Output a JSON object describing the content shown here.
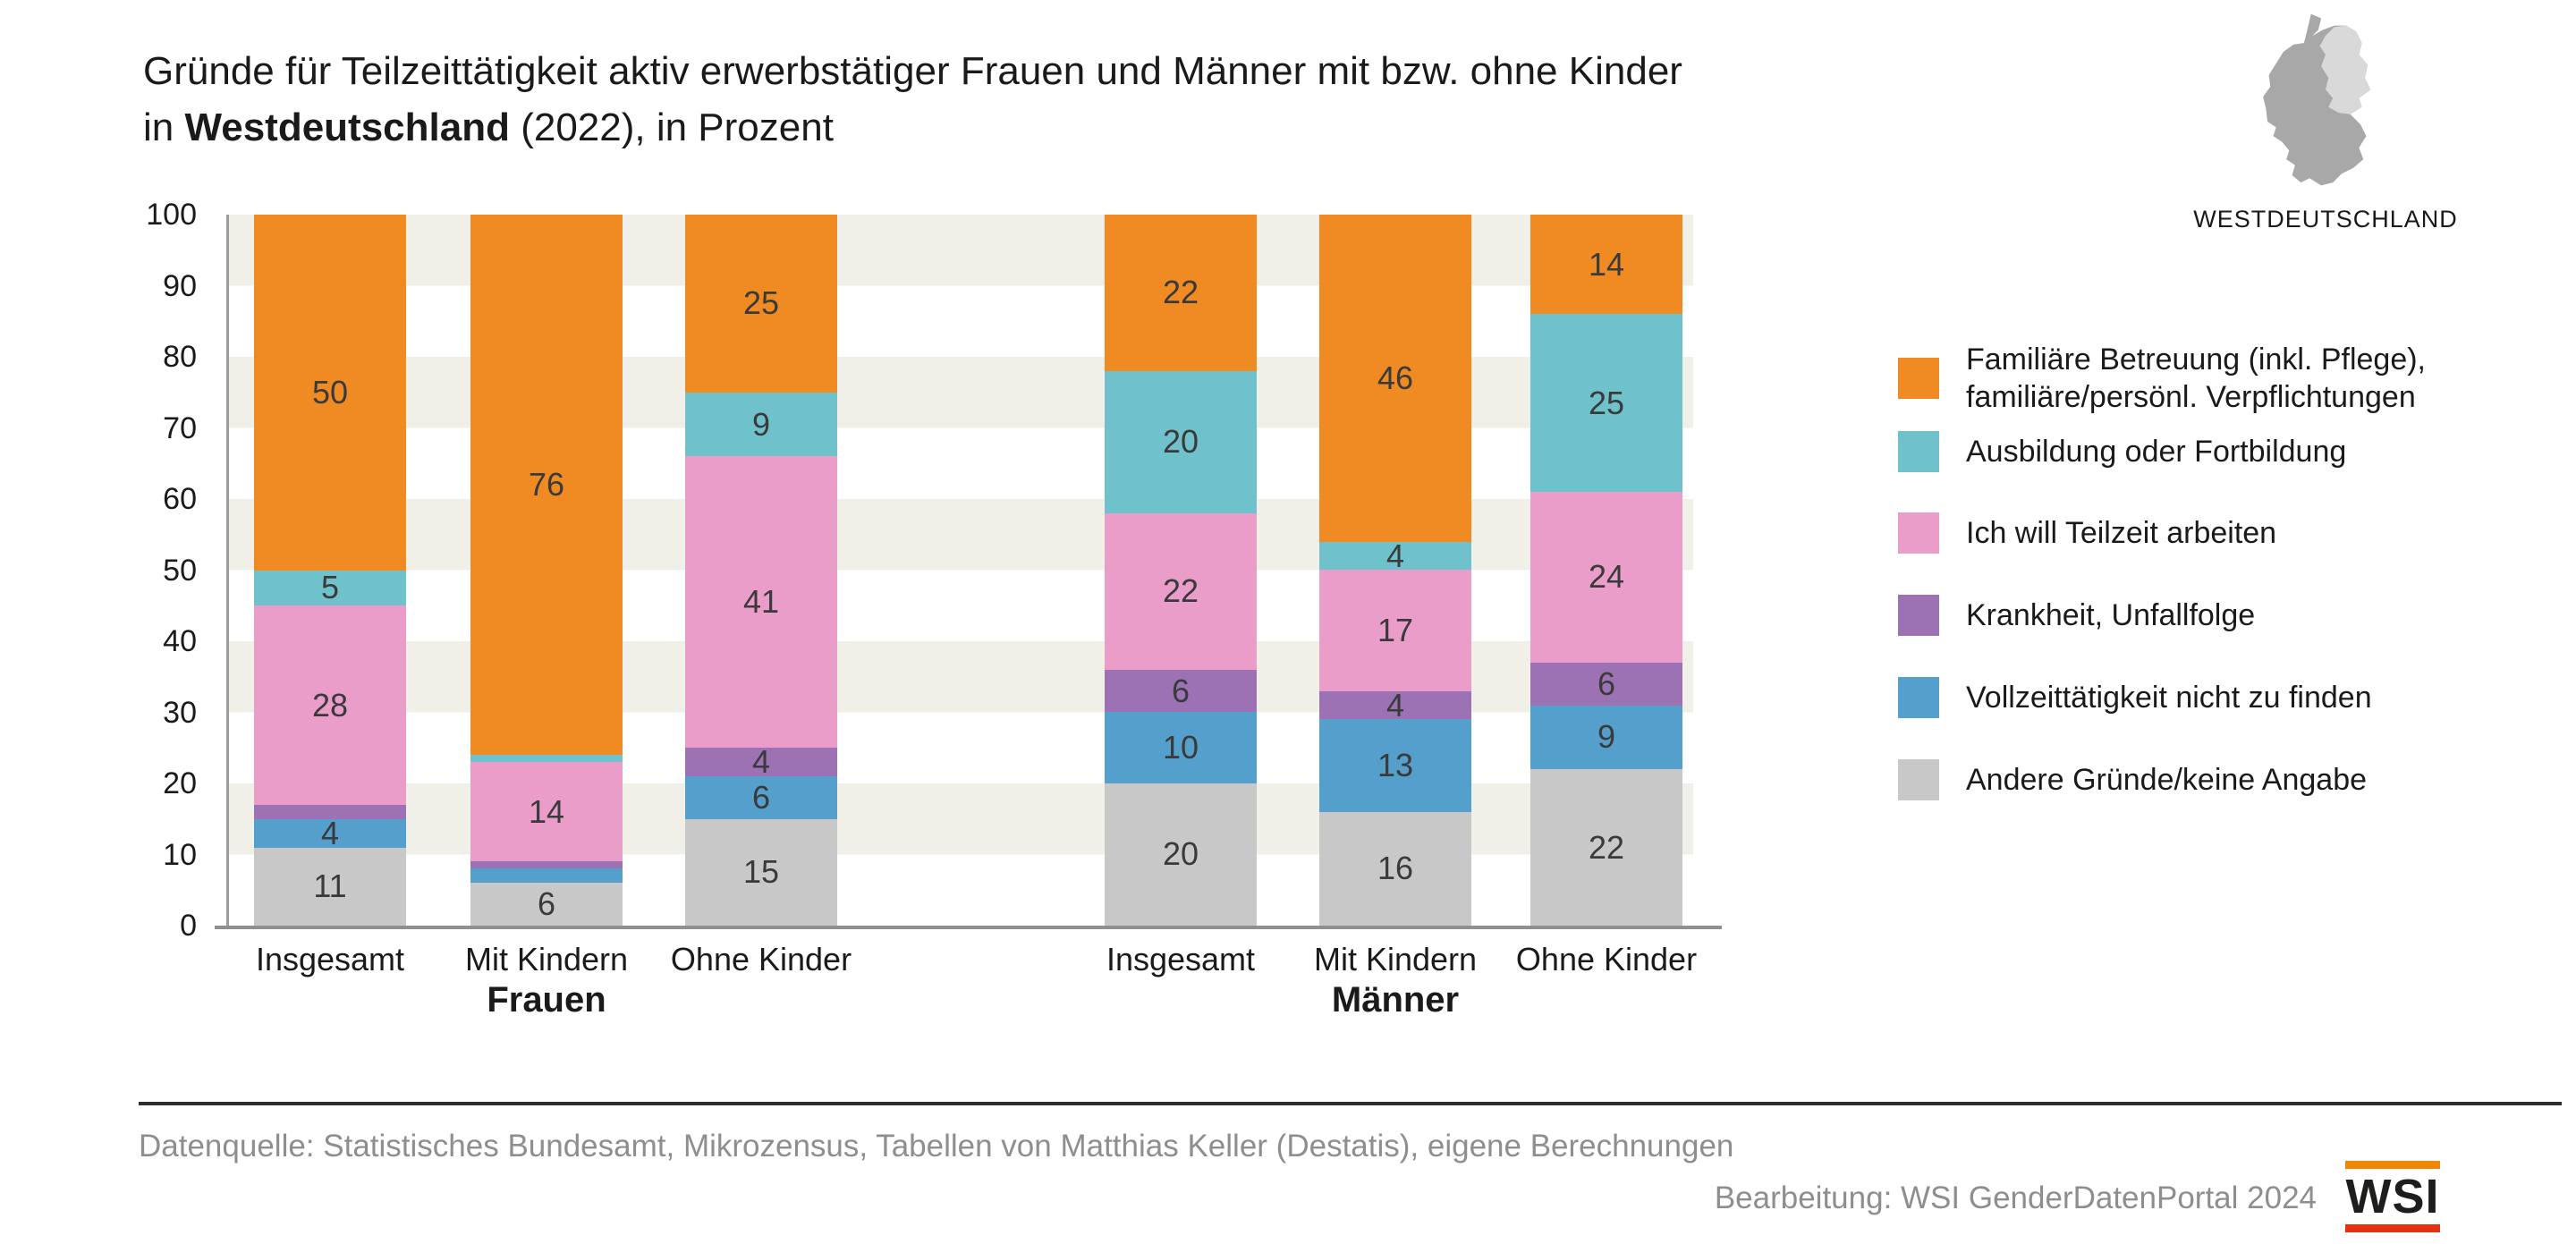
{
  "title": {
    "line1": "Gründe für Teilzeittätigkeit aktiv erwerbstätiger Frauen und Männer mit bzw. ohne Kinder",
    "line2_prefix": "in ",
    "line2_bold": "Westdeutschland",
    "line2_suffix": " (2022), in Prozent"
  },
  "region_badge": {
    "label": "WESTDEUTSCHLAND",
    "map_west_color": "#a8a8a8",
    "map_east_color": "#d9d9d9"
  },
  "chart_data": {
    "type": "bar",
    "stacked": true,
    "unit": "Prozent",
    "ylim": [
      0,
      100
    ],
    "yticks": [
      0,
      10,
      20,
      30,
      40,
      50,
      60,
      70,
      80,
      90,
      100
    ],
    "grid": "striped-bands-every-10",
    "legend_position": "right",
    "label_min_value": 4,
    "stripe_color": "#f1f0e8",
    "series": [
      {
        "key": "betreuung",
        "label_lines": [
          "Familiäre Betreuung (inkl. Pflege),",
          "familiäre/persönl. Verpflichtungen"
        ],
        "color": "#f08a23"
      },
      {
        "key": "ausbildung",
        "label_lines": [
          "Ausbildung oder Fortbildung"
        ],
        "color": "#6fc2cc"
      },
      {
        "key": "teilzeit",
        "label_lines": [
          "Ich will Teilzeit arbeiten"
        ],
        "color": "#ea9dc9"
      },
      {
        "key": "krankheit",
        "label_lines": [
          "Krankheit, Unfallfolge"
        ],
        "color": "#9c72b5"
      },
      {
        "key": "vollzeit",
        "label_lines": [
          "Vollzeittätigkeit nicht zu finden"
        ],
        "color": "#549fcb"
      },
      {
        "key": "andere",
        "label_lines": [
          "Andere Gründe/keine Angabe"
        ],
        "color": "#c8c8c8"
      }
    ],
    "stack_order_bottom_to_top": [
      "andere",
      "vollzeit",
      "krankheit",
      "teilzeit",
      "ausbildung",
      "betreuung"
    ],
    "groups": [
      {
        "label": "Frauen",
        "bars": [
          {
            "label": "Insgesamt",
            "values": {
              "betreuung": 50,
              "ausbildung": 5,
              "teilzeit": 28,
              "krankheit": 2,
              "vollzeit": 4,
              "andere": 11
            }
          },
          {
            "label": "Mit Kindern",
            "values": {
              "betreuung": 76,
              "ausbildung": 1,
              "teilzeit": 14,
              "krankheit": 1,
              "vollzeit": 2,
              "andere": 6
            }
          },
          {
            "label": "Ohne Kinder",
            "values": {
              "betreuung": 25,
              "ausbildung": 9,
              "teilzeit": 41,
              "krankheit": 4,
              "vollzeit": 6,
              "andere": 15
            }
          }
        ]
      },
      {
        "label": "Männer",
        "bars": [
          {
            "label": "Insgesamt",
            "values": {
              "betreuung": 22,
              "ausbildung": 20,
              "teilzeit": 22,
              "krankheit": 6,
              "vollzeit": 10,
              "andere": 20
            }
          },
          {
            "label": "Mit Kindern",
            "values": {
              "betreuung": 46,
              "ausbildung": 4,
              "teilzeit": 17,
              "krankheit": 4,
              "vollzeit": 13,
              "andere": 16
            }
          },
          {
            "label": "Ohne Kinder",
            "values": {
              "betreuung": 14,
              "ausbildung": 25,
              "teilzeit": 24,
              "krankheit": 6,
              "vollzeit": 9,
              "andere": 22
            }
          }
        ]
      }
    ]
  },
  "footer": {
    "source": "Datenquelle: Statistisches Bundesamt, Mikrozensus, Tabellen von Matthias Keller (Destatis), eigene Berechnungen",
    "credit": "Bearbeitung: WSI GenderDatenPortal 2024",
    "logo_text": "WSI",
    "logo_top_bar_color": "#f18700",
    "logo_bottom_bar_color": "#e53012"
  }
}
